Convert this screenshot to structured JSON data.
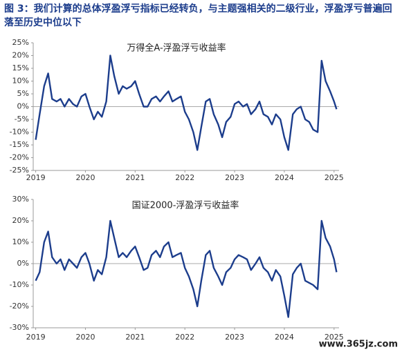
{
  "header": {
    "title": "图 3：我们计算的总体浮盈浮亏指标已经转负，与主题强相关的二级行业，浮盈浮亏普遍回落至历史中位以下"
  },
  "watermark": "www.365jz.com",
  "chart_data": [
    {
      "type": "line",
      "title": "万得全A-浮盈浮亏收益率",
      "color": "#1c3d8c",
      "x": [
        2019.0,
        2019.08,
        2019.17,
        2019.25,
        2019.33,
        2019.42,
        2019.5,
        2019.58,
        2019.67,
        2019.75,
        2019.83,
        2019.92,
        2020.0,
        2020.08,
        2020.17,
        2020.25,
        2020.33,
        2020.42,
        2020.5,
        2020.58,
        2020.67,
        2020.75,
        2020.83,
        2020.92,
        2021.0,
        2021.08,
        2021.17,
        2021.25,
        2021.33,
        2021.42,
        2021.5,
        2021.58,
        2021.67,
        2021.75,
        2021.83,
        2021.92,
        2022.0,
        2022.08,
        2022.17,
        2022.25,
        2022.33,
        2022.42,
        2022.5,
        2022.58,
        2022.67,
        2022.75,
        2022.83,
        2022.92,
        2023.0,
        2023.08,
        2023.17,
        2023.25,
        2023.33,
        2023.42,
        2023.5,
        2023.58,
        2023.67,
        2023.75,
        2023.83,
        2023.92,
        2024.0,
        2024.08,
        2024.17,
        2024.25,
        2024.33,
        2024.42,
        2024.5,
        2024.58,
        2024.67,
        2024.75,
        2024.83,
        2024.92,
        2025.0,
        2025.05
      ],
      "values": [
        -13,
        -3,
        8,
        13,
        3,
        2,
        3,
        0,
        3,
        1,
        0,
        4,
        5,
        0,
        -5,
        -2,
        -4,
        2,
        20,
        12,
        5,
        8,
        7,
        8,
        10,
        5,
        0,
        0,
        3,
        4,
        2,
        4,
        6,
        2,
        3,
        4,
        -2,
        -5,
        -10,
        -17,
        -8,
        2,
        3,
        -3,
        -7,
        -12,
        -6,
        -4,
        1,
        2,
        0,
        1,
        -3,
        -1,
        2,
        -3,
        -4,
        -7,
        -3,
        -5,
        -12,
        -17,
        -3,
        -1,
        0,
        -5,
        -6,
        -9,
        -10,
        18,
        10,
        6,
        2,
        -1
      ],
      "xlim": [
        2018.95,
        2025.1
      ],
      "xticks": [
        2019,
        2020,
        2021,
        2022,
        2023,
        2024,
        2025
      ],
      "ylim": [
        -25,
        25
      ],
      "yticks": [
        {
          "value": 25,
          "label": "25%"
        },
        {
          "value": 20,
          "label": "20%"
        },
        {
          "value": 15,
          "label": "15%"
        },
        {
          "value": 10,
          "label": "10%"
        },
        {
          "value": 5,
          "label": "5%"
        },
        {
          "value": 0,
          "label": "0%"
        },
        {
          "value": -5,
          "label": "-5%"
        },
        {
          "value": -10,
          "label": "-10%"
        },
        {
          "value": -15,
          "label": "-15%"
        },
        {
          "value": -20,
          "label": "-20%"
        },
        {
          "value": -25,
          "label": "-25%"
        }
      ]
    },
    {
      "type": "line",
      "title": "国证2000-浮盈浮亏收益率",
      "color": "#1c3d8c",
      "x": [
        2019.0,
        2019.08,
        2019.17,
        2019.25,
        2019.33,
        2019.42,
        2019.5,
        2019.58,
        2019.67,
        2019.75,
        2019.83,
        2019.92,
        2020.0,
        2020.08,
        2020.17,
        2020.25,
        2020.33,
        2020.42,
        2020.5,
        2020.58,
        2020.67,
        2020.75,
        2020.83,
        2020.92,
        2021.0,
        2021.08,
        2021.17,
        2021.25,
        2021.33,
        2021.42,
        2021.5,
        2021.58,
        2021.67,
        2021.75,
        2021.83,
        2021.92,
        2022.0,
        2022.08,
        2022.17,
        2022.25,
        2022.33,
        2022.42,
        2022.5,
        2022.58,
        2022.67,
        2022.75,
        2022.83,
        2022.92,
        2023.0,
        2023.08,
        2023.17,
        2023.25,
        2023.33,
        2023.42,
        2023.5,
        2023.58,
        2023.67,
        2023.75,
        2023.83,
        2023.92,
        2024.0,
        2024.08,
        2024.17,
        2024.25,
        2024.33,
        2024.42,
        2024.5,
        2024.58,
        2024.67,
        2024.75,
        2024.83,
        2024.92,
        2025.0,
        2025.05
      ],
      "values": [
        -8,
        -4,
        10,
        15,
        3,
        0,
        2,
        -3,
        2,
        0,
        -2,
        3,
        5,
        0,
        -8,
        -3,
        -5,
        3,
        20,
        12,
        3,
        5,
        3,
        6,
        8,
        3,
        -3,
        -2,
        4,
        6,
        3,
        8,
        10,
        3,
        4,
        5,
        -2,
        -6,
        -12,
        -20,
        -8,
        4,
        6,
        -2,
        -6,
        -10,
        -4,
        -2,
        2,
        4,
        3,
        2,
        -3,
        0,
        3,
        -2,
        -4,
        -8,
        -3,
        -6,
        -15,
        -25,
        -5,
        -2,
        0,
        -8,
        -9,
        -10,
        -12,
        20,
        12,
        8,
        2,
        -4
      ],
      "xlim": [
        2018.95,
        2025.1
      ],
      "xticks": [
        2019,
        2020,
        2021,
        2022,
        2023,
        2024,
        2025
      ],
      "ylim": [
        -30,
        30
      ],
      "yticks": [
        {
          "value": 30,
          "label": "30%"
        },
        {
          "value": 20,
          "label": "20%"
        },
        {
          "value": 10,
          "label": "10%"
        },
        {
          "value": 0,
          "label": "0%"
        },
        {
          "value": -10,
          "label": "-10%"
        },
        {
          "value": -20,
          "label": "-20%"
        },
        {
          "value": -30,
          "label": "-30%"
        }
      ]
    }
  ]
}
